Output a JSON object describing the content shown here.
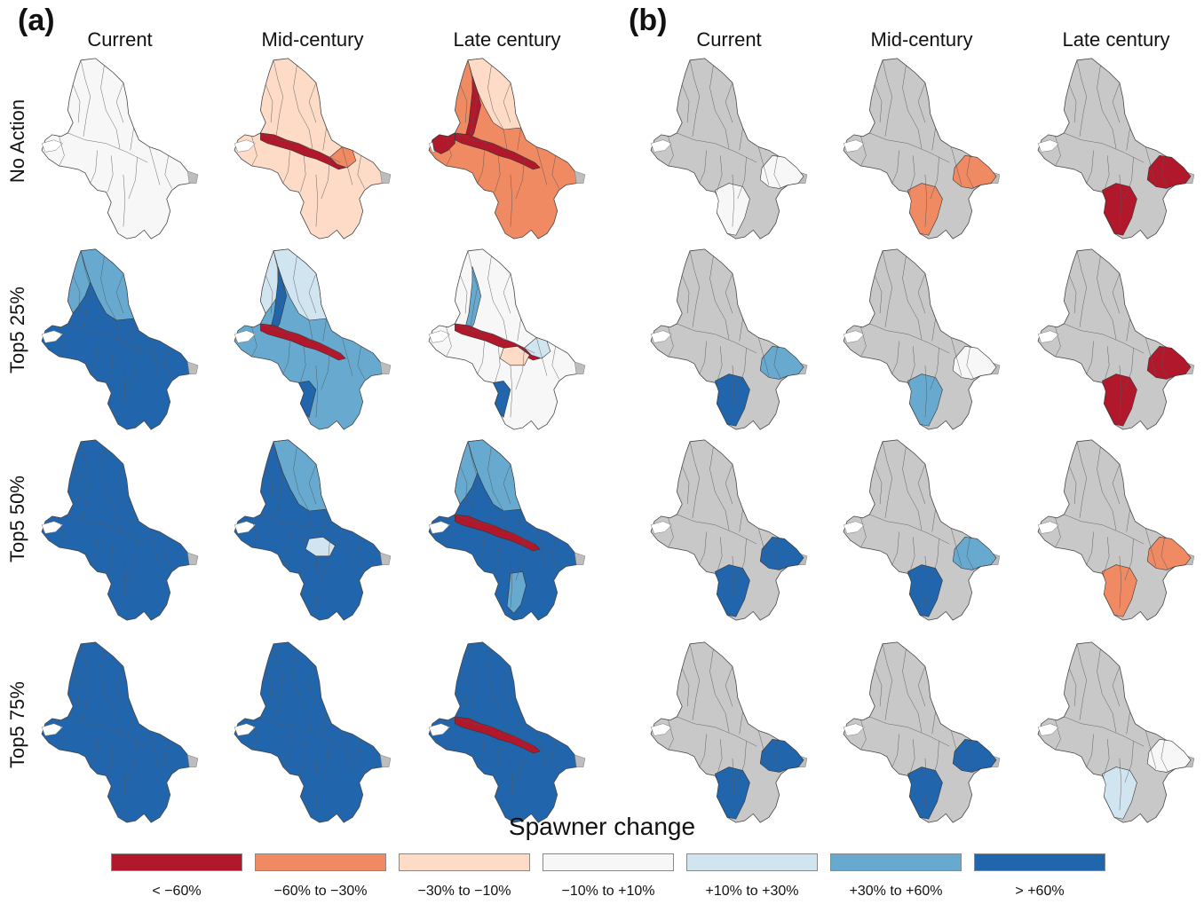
{
  "panels": [
    {
      "letter": "(a)",
      "columns": [
        "Current",
        "Mid-century",
        "Late century"
      ],
      "rows": [
        {
          "label": "No Action",
          "maps": [
            {
              "base": "none-white",
              "extra": []
            },
            {
              "base": "m-10to-30",
              "extra": [
                {
                  "region": "mainstem",
                  "cls": "lt-60"
                },
                {
                  "region": "se-patch",
                  "cls": "m-30to-60"
                }
              ]
            },
            {
              "base": "m-30to-60",
              "extra": [
                {
                  "region": "ne-upper",
                  "cls": "m-10to-30"
                },
                {
                  "region": "nw-spine",
                  "cls": "lt-60"
                },
                {
                  "region": "mainstem",
                  "cls": "lt-60"
                },
                {
                  "region": "west-lobe",
                  "cls": "lt-60"
                }
              ]
            }
          ]
        },
        {
          "label": "Top5 25%",
          "maps": [
            {
              "base": "gt60",
              "extra": [
                {
                  "region": "ne-upper",
                  "cls": "p30to60"
                },
                {
                  "region": "nw-upper",
                  "cls": "p30to60"
                }
              ]
            },
            {
              "base": "p30to60",
              "extra": [
                {
                  "region": "ne-upper",
                  "cls": "p10to30"
                },
                {
                  "region": "nw-upper",
                  "cls": "p10to30"
                },
                {
                  "region": "nw-spine",
                  "cls": "gt60"
                },
                {
                  "region": "mainstem",
                  "cls": "lt-60"
                },
                {
                  "region": "south-west",
                  "cls": "gt60"
                }
              ]
            },
            {
              "base": "none-white",
              "extra": [
                {
                  "region": "nw-spine",
                  "cls": "p30to60"
                },
                {
                  "region": "mainstem",
                  "cls": "lt-60"
                },
                {
                  "region": "se-patch",
                  "cls": "p10to30"
                },
                {
                  "region": "south-west",
                  "cls": "gt60"
                },
                {
                  "region": "center",
                  "cls": "m-10to-30"
                }
              ]
            }
          ]
        },
        {
          "label": "Top5 50%",
          "maps": [
            {
              "base": "gt60",
              "extra": []
            },
            {
              "base": "gt60",
              "extra": [
                {
                  "region": "ne-upper",
                  "cls": "p30to60"
                },
                {
                  "region": "center",
                  "cls": "p10to30"
                }
              ]
            },
            {
              "base": "gt60",
              "extra": [
                {
                  "region": "ne-upper",
                  "cls": "p30to60"
                },
                {
                  "region": "nw-upper",
                  "cls": "p30to60"
                },
                {
                  "region": "mainstem",
                  "cls": "lt-60"
                },
                {
                  "region": "south-center",
                  "cls": "p30to60"
                }
              ]
            }
          ]
        },
        {
          "label": "Top5 75%",
          "maps": [
            {
              "base": "gt60",
              "extra": []
            },
            {
              "base": "gt60",
              "extra": []
            },
            {
              "base": "gt60",
              "extra": [
                {
                  "region": "mainstem",
                  "cls": "lt-60"
                }
              ]
            }
          ]
        }
      ]
    },
    {
      "letter": "(b)",
      "columns": [
        "Current",
        "Mid-century",
        "Late century"
      ],
      "rows": [
        {
          "label": "",
          "maps": [
            {
              "base": "grey",
              "extra": [
                {
                  "region": "east-lobe",
                  "cls": "none-white"
                },
                {
                  "region": "south-lobe",
                  "cls": "none-white"
                }
              ]
            },
            {
              "base": "grey",
              "extra": [
                {
                  "region": "east-lobe",
                  "cls": "m-30to-60"
                },
                {
                  "region": "south-lobe",
                  "cls": "m-30to-60"
                }
              ]
            },
            {
              "base": "grey",
              "extra": [
                {
                  "region": "east-lobe",
                  "cls": "lt-60"
                },
                {
                  "region": "south-lobe",
                  "cls": "lt-60"
                }
              ]
            }
          ]
        },
        {
          "label": "",
          "maps": [
            {
              "base": "grey",
              "extra": [
                {
                  "region": "east-lobe",
                  "cls": "p30to60"
                },
                {
                  "region": "south-lobe",
                  "cls": "gt60"
                }
              ]
            },
            {
              "base": "grey",
              "extra": [
                {
                  "region": "east-lobe",
                  "cls": "none-white"
                },
                {
                  "region": "south-lobe",
                  "cls": "p30to60"
                }
              ]
            },
            {
              "base": "grey",
              "extra": [
                {
                  "region": "east-lobe",
                  "cls": "lt-60"
                },
                {
                  "region": "south-lobe",
                  "cls": "lt-60"
                }
              ]
            }
          ]
        },
        {
          "label": "",
          "maps": [
            {
              "base": "grey",
              "extra": [
                {
                  "region": "east-lobe",
                  "cls": "gt60"
                },
                {
                  "region": "south-lobe",
                  "cls": "gt60"
                }
              ]
            },
            {
              "base": "grey",
              "extra": [
                {
                  "region": "east-lobe",
                  "cls": "p30to60"
                },
                {
                  "region": "south-lobe",
                  "cls": "gt60"
                }
              ]
            },
            {
              "base": "grey",
              "extra": [
                {
                  "region": "east-lobe",
                  "cls": "m-30to-60"
                },
                {
                  "region": "south-lobe",
                  "cls": "m-30to-60"
                }
              ]
            }
          ]
        },
        {
          "label": "",
          "maps": [
            {
              "base": "grey",
              "extra": [
                {
                  "region": "east-lobe",
                  "cls": "gt60"
                },
                {
                  "region": "south-lobe",
                  "cls": "gt60"
                }
              ]
            },
            {
              "base": "grey",
              "extra": [
                {
                  "region": "east-lobe",
                  "cls": "gt60"
                },
                {
                  "region": "south-lobe",
                  "cls": "gt60"
                }
              ]
            },
            {
              "base": "grey",
              "extra": [
                {
                  "region": "east-lobe",
                  "cls": "none-white"
                },
                {
                  "region": "south-lobe",
                  "cls": "p10to30"
                }
              ]
            }
          ]
        }
      ]
    }
  ],
  "legend": {
    "title": "Spawner change",
    "items": [
      {
        "key": "lt-60",
        "label": "< −60%",
        "color": "#b2182b"
      },
      {
        "key": "m-30to-60",
        "label": "−60% to −30%",
        "color": "#ef8a62"
      },
      {
        "key": "m-10to-30",
        "label": "−30% to −10%",
        "color": "#fddbc7"
      },
      {
        "key": "none-white",
        "label": "−10% to +10%",
        "color": "#f7f7f7"
      },
      {
        "key": "p10to30",
        "label": "+10% to +30%",
        "color": "#d1e5f0"
      },
      {
        "key": "p30to60",
        "label": "+30% to +60%",
        "color": "#67a9cf"
      },
      {
        "key": "gt60",
        "label": "> +60%",
        "color": "#2166ac"
      }
    ]
  },
  "colors": {
    "grey": "#c8c8c8",
    "background-grey": "#bdbdbd"
  }
}
